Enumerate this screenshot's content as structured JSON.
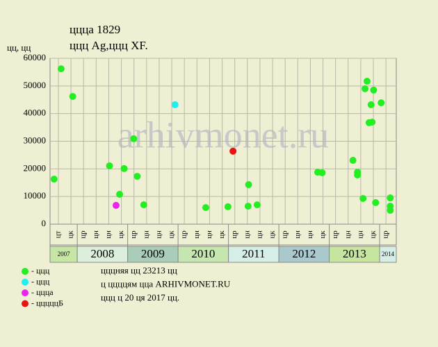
{
  "chart_data": {
    "type": "scatter",
    "title": "ццца 1829",
    "subtitle": "ццц Ag,ццц XF.",
    "y_label": "цц, цц",
    "watermark": "arhivmonet.ru",
    "xlim": [
      2007.46,
      2014.33
    ],
    "ylim": [
      0,
      60000
    ],
    "yticks": [
      0,
      10000,
      20000,
      30000,
      40000,
      50000,
      60000
    ],
    "grid": true,
    "quarter_labels": [
      {
        "value": 2007.625,
        "label": "цт"
      },
      {
        "value": 2007.875,
        "label": "цк"
      },
      {
        "value": 2008.125,
        "label": "цр"
      },
      {
        "value": 2008.375,
        "label": "цн"
      },
      {
        "value": 2008.625,
        "label": "цн"
      },
      {
        "value": 2008.875,
        "label": "цк"
      },
      {
        "value": 2009.125,
        "label": "цр"
      },
      {
        "value": 2009.375,
        "label": "цн"
      },
      {
        "value": 2009.625,
        "label": "цн"
      },
      {
        "value": 2009.875,
        "label": "цк"
      },
      {
        "value": 2010.125,
        "label": "цр"
      },
      {
        "value": 2010.375,
        "label": "цн"
      },
      {
        "value": 2010.625,
        "label": "цн"
      },
      {
        "value": 2010.875,
        "label": "цк"
      },
      {
        "value": 2011.125,
        "label": "цр"
      },
      {
        "value": 2011.375,
        "label": "цн"
      },
      {
        "value": 2011.625,
        "label": "цн"
      },
      {
        "value": 2011.875,
        "label": "цк"
      },
      {
        "value": 2012.125,
        "label": "цр"
      },
      {
        "value": 2012.375,
        "label": "цн"
      },
      {
        "value": 2012.625,
        "label": "цн"
      },
      {
        "value": 2012.875,
        "label": "цк"
      },
      {
        "value": 2013.125,
        "label": "цр"
      },
      {
        "value": 2013.375,
        "label": "цн"
      },
      {
        "value": 2013.625,
        "label": "цн"
      },
      {
        "value": 2013.875,
        "label": "цк"
      },
      {
        "value": 2014.125,
        "label": "цр"
      }
    ],
    "years": [
      "2007",
      "2008",
      "2009",
      "2010",
      "2011",
      "2012",
      "2013",
      "2014"
    ],
    "year_colors": [
      "#c6e6a6",
      "#dcefdc",
      "#a9cdb9",
      "#c6e6b0",
      "#d6efe6",
      "#a9c9cd",
      "#c6e6a0",
      "#d6efe6"
    ],
    "series": [
      {
        "name": "- ццц",
        "color": "#22ee22",
        "x": [
          2007.54,
          2007.68,
          2007.91,
          2008.64,
          2008.84,
          2008.93,
          2009.12,
          2009.19,
          2009.32,
          2010.55,
          2010.99,
          2011.4,
          2011.39,
          2011.57,
          2012.77,
          2012.86,
          2013.47,
          2013.56,
          2013.56,
          2013.67,
          2013.71,
          2013.75,
          2013.79,
          2013.83,
          2013.85,
          2013.88,
          2013.92,
          2014.03,
          2014.21,
          2014.21,
          2014.21
        ],
        "values": [
          16300,
          56200,
          46200,
          21100,
          10800,
          20100,
          30900,
          17300,
          7000,
          6000,
          6300,
          14300,
          6500,
          7000,
          18800,
          18600,
          23100,
          18800,
          17800,
          9300,
          49000,
          51700,
          36700,
          43200,
          36900,
          48500,
          7800,
          43900,
          9500,
          6500,
          5000
        ]
      },
      {
        "name": "- ццц",
        "color": "#22eeee",
        "x": [
          2009.94
        ],
        "values": [
          43200
        ]
      },
      {
        "name": "- ццца",
        "color": "#ee22ee",
        "x": [
          2008.77
        ],
        "values": [
          6800
        ]
      },
      {
        "name": "- цццццБ",
        "color": "#ee1111",
        "x": [
          2011.09
        ],
        "values": [
          26400
        ]
      }
    ],
    "notes": [
      "цццняя цц 23213 цц",
      "ц ццццям цца ARHIVMONET.RU",
      "ццц ц 20 ця 2017 цц."
    ]
  }
}
